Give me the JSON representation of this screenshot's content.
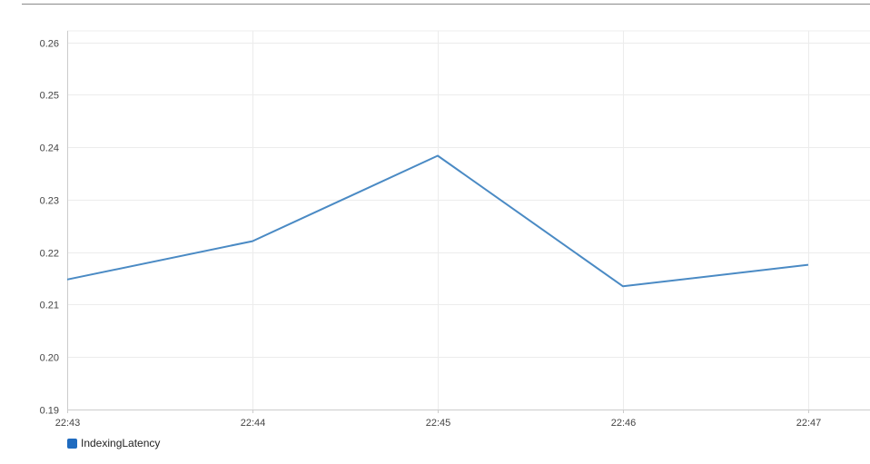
{
  "chart_data": {
    "type": "line",
    "title": "",
    "xlabel": "",
    "ylabel": "",
    "x": [
      "22:43",
      "22:44",
      "22:45",
      "22:46",
      "22:47"
    ],
    "y_ticks": [
      "0.19",
      "0.20",
      "0.21",
      "0.22",
      "0.23",
      "0.24",
      "0.25",
      "0.26"
    ],
    "ylim": [
      0.19,
      0.2622
    ],
    "grid": true,
    "legend_position": "bottom-left",
    "series": [
      {
        "name": "IndexingLatency",
        "color": "#4a8ac4",
        "legend_color": "#1f6bbf",
        "values": [
          0.2148,
          0.2221,
          0.2384,
          0.2135,
          0.2176
        ]
      }
    ]
  }
}
